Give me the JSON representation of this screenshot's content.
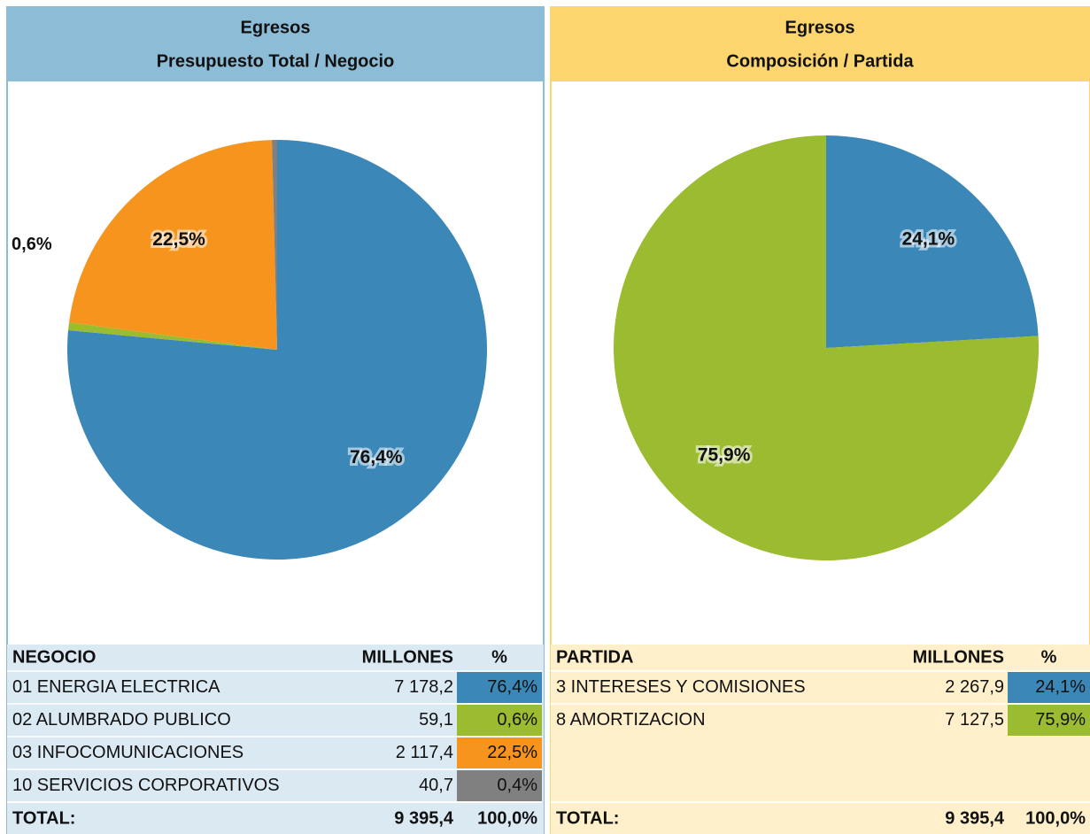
{
  "chart_data": [
    {
      "type": "pie",
      "title": "Egresos",
      "subtitle": "Presupuesto Total / Negocio",
      "categories": [
        "01 ENERGIA ELECTRICA",
        "02 ALUMBRADO PUBLICO",
        "03 INFOCOMUNICACIONES",
        "10 SERVICIOS CORPORATIVOS"
      ],
      "values": [
        76.4,
        0.6,
        22.5,
        0.4
      ],
      "value_labels": [
        "76,4%",
        "0,6%",
        "22,5%",
        null
      ],
      "colors": [
        "#3a87b8",
        "#9bbb30",
        "#f7941d",
        "#808080"
      ]
    },
    {
      "type": "pie",
      "title": "Egresos",
      "subtitle": "Composición / Partida",
      "categories": [
        "3 INTERESES Y COMISIONES",
        "8 AMORTIZACION"
      ],
      "values": [
        24.1,
        75.9
      ],
      "value_labels": [
        "24,1%",
        "75,9%"
      ],
      "colors": [
        "#3a87b8",
        "#9bbb30"
      ]
    }
  ],
  "tables": [
    {
      "header": [
        "NEGOCIO",
        "MILLONES",
        "%"
      ],
      "rows": [
        [
          "01 ENERGIA ELECTRICA",
          "7 178,2",
          "76,4%"
        ],
        [
          "02 ALUMBRADO PUBLICO",
          "59,1",
          "0,6%"
        ],
        [
          "03 INFOCOMUNICACIONES",
          "2 117,4",
          "22,5%"
        ],
        [
          "10 SERVICIOS CORPORATIVOS",
          "40,7",
          "0,4%"
        ]
      ],
      "total": [
        "TOTAL:",
        "9 395,4",
        "100,0%"
      ]
    },
    {
      "header": [
        "PARTIDA",
        "MILLONES",
        "%"
      ],
      "rows": [
        [
          "3 INTERESES Y COMISIONES",
          "2 267,9",
          "24,1%"
        ],
        [
          "8 AMORTIZACION",
          "7 127,5",
          "75,9%"
        ]
      ],
      "total": [
        "TOTAL:",
        "9 395,4",
        "100,0%"
      ]
    }
  ]
}
